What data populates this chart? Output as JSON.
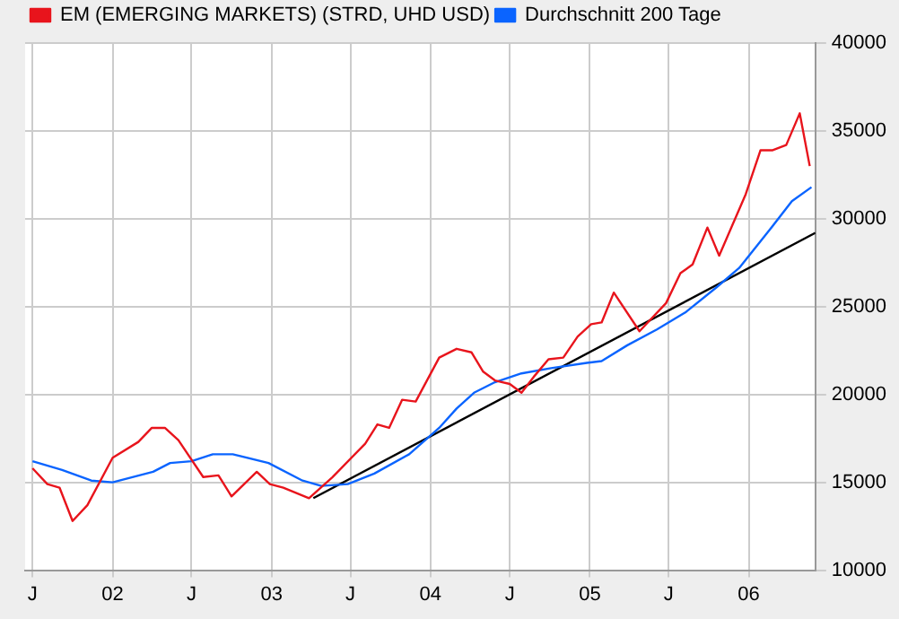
{
  "chart_data": {
    "type": "line",
    "legend": "top left",
    "grid": true,
    "marker": "none",
    "line_style": "solid",
    "xlim": [
      "2001-06-14",
      "2006-06-03"
    ],
    "xticks": [
      {
        "value": "2001-07",
        "label": "J"
      },
      {
        "value": "2002-01",
        "label": "02"
      },
      {
        "value": "2002-07",
        "label": "J"
      },
      {
        "value": "2003-01",
        "label": "03"
      },
      {
        "value": "2003-07",
        "label": "J"
      },
      {
        "value": "2004-01",
        "label": "04"
      },
      {
        "value": "2004-07",
        "label": "J"
      },
      {
        "value": "2005-01",
        "label": "05"
      },
      {
        "value": "2005-07",
        "label": "J"
      },
      {
        "value": "2006-01",
        "label": "06"
      }
    ],
    "ylim": [
      10000,
      40000
    ],
    "yticks": [
      10000,
      15000,
      20000,
      25000,
      30000,
      35000,
      40000
    ],
    "series": [
      {
        "name": "EM (EMERGING MARKETS) (STRD, UHD USD)",
        "color": "#e8141c",
        "x": [
          "2001-07-01",
          "2001-08-04",
          "2001-09-01",
          "2001-10-01",
          "2001-11-04",
          "2002-01-01",
          "2002-03-01",
          "2002-04-01",
          "2002-05-01",
          "2002-06-01",
          "2002-07-28",
          "2002-09-01",
          "2002-10-01",
          "2002-11-28",
          "2002-12-28",
          "2003-01-28",
          "2003-03-28",
          "2003-05-21",
          "2003-08-04",
          "2003-09-01",
          "2003-09-28",
          "2003-10-28",
          "2003-11-28",
          "2004-01-21",
          "2004-03-01",
          "2004-04-04",
          "2004-05-01",
          "2004-05-28",
          "2004-07-01",
          "2004-07-28",
          "2004-08-25",
          "2004-09-28",
          "2004-11-01",
          "2004-12-04",
          "2005-01-04",
          "2005-01-28",
          "2005-02-25",
          "2005-04-25",
          "2005-06-25",
          "2005-07-28",
          "2005-08-25",
          "2005-09-28",
          "2005-10-25",
          "2005-12-25",
          "2006-01-28",
          "2006-02-25",
          "2006-03-28",
          "2006-04-28",
          "2006-05-21"
        ],
        "values": [
          15800,
          14900,
          14700,
          12800,
          13700,
          16400,
          17300,
          18100,
          18100,
          17400,
          15300,
          15400,
          14200,
          15600,
          14900,
          14700,
          14100,
          15300,
          17200,
          18300,
          18100,
          19700,
          19600,
          22100,
          22600,
          22400,
          21300,
          20800,
          20600,
          20100,
          21000,
          22000,
          22100,
          23300,
          24000,
          24100,
          25800,
          23600,
          25200,
          26900,
          27400,
          29500,
          27900,
          31400,
          33900,
          33900,
          34200,
          36000,
          33000
        ]
      },
      {
        "name": "Durchschnitt 200 Tage",
        "color": "#0a64ff",
        "x": [
          "2001-07-01",
          "2001-09-07",
          "2001-11-13",
          "2002-01-01",
          "2002-04-04",
          "2002-05-13",
          "2002-07-01",
          "2002-08-19",
          "2002-10-04",
          "2002-12-25",
          "2003-03-13",
          "2003-04-25",
          "2003-06-25",
          "2003-08-25",
          "2003-11-13",
          "2004-01-21",
          "2004-03-01",
          "2004-04-10",
          "2004-05-28",
          "2004-07-28",
          "2004-10-04",
          "2004-12-25",
          "2005-01-28",
          "2005-03-28",
          "2005-06-04",
          "2005-08-10",
          "2005-10-19",
          "2005-12-10",
          "2006-02-19",
          "2006-04-10",
          "2006-05-25"
        ],
        "values": [
          16200,
          15700,
          15100,
          15000,
          15600,
          16100,
          16200,
          16600,
          16600,
          16100,
          15100,
          14800,
          14900,
          15500,
          16600,
          18100,
          19200,
          20100,
          20700,
          21200,
          21500,
          21800,
          21900,
          22800,
          23700,
          24700,
          26100,
          27200,
          29400,
          31000,
          31800
        ]
      },
      {
        "type": "line",
        "color": "#000000",
        "x": [
          "2003-04-07",
          "2006-06-03"
        ],
        "values": [
          14100,
          29200
        ]
      }
    ]
  }
}
